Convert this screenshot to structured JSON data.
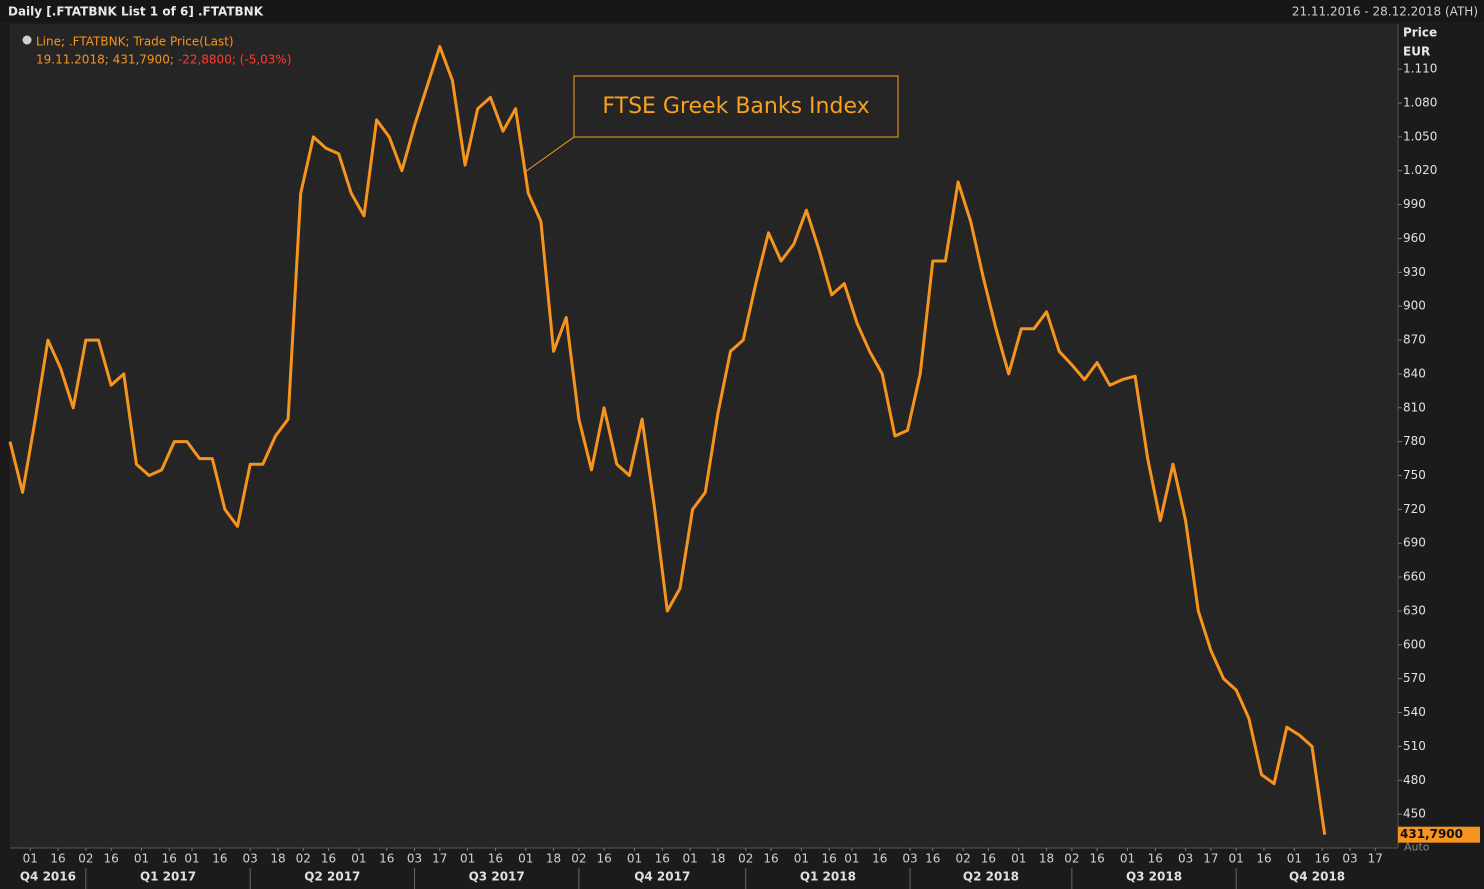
{
  "chart_data": {
    "type": "line",
    "header": "Daily [.FTATBNK List 1 of 6] .FTATBNK",
    "date_range": "21.11.2016 - 28.12.2018 (ATH)",
    "y_axis_label": "Price",
    "y_axis_unit": "EUR",
    "annotation": "FTSE Greek Banks Index",
    "legend_values": "19.11.2018; 431,7900;",
    "legend_change": "-22,8800; (-5,03%)",
    "last_price_label": "431,7900",
    "axis_mode": "Auto",
    "grid": true,
    "xlim": [
      "21.11.2016",
      "28.12.2018"
    ],
    "ylim": [
      420,
      1150
    ],
    "yticks": [
      450,
      480,
      510,
      540,
      570,
      600,
      630,
      660,
      690,
      720,
      750,
      780,
      810,
      840,
      870,
      900,
      930,
      960,
      990,
      {
        "value": 1020,
        "label": "1.020"
      },
      {
        "value": 1050,
        "label": "1.050"
      },
      {
        "value": 1080,
        "label": "1.080"
      },
      {
        "value": 1110,
        "label": "1.110"
      }
    ],
    "xticks": [
      {
        "value": "01.12.2016",
        "label": "01"
      },
      {
        "value": "16.12.2016",
        "label": "16"
      },
      {
        "value": "02.01.2017",
        "label": "02"
      },
      {
        "value": "16.01.2017",
        "label": "16"
      },
      {
        "value": "01.02.2017",
        "label": "01"
      },
      {
        "value": "16.02.2017",
        "label": "16"
      },
      {
        "value": "01.03.2017",
        "label": "01"
      },
      {
        "value": "16.03.2017",
        "label": "16"
      },
      {
        "value": "03.04.2017",
        "label": "03"
      },
      {
        "value": "18.04.2017",
        "label": "18"
      },
      {
        "value": "02.05.2017",
        "label": "02"
      },
      {
        "value": "16.05.2017",
        "label": "16"
      },
      {
        "value": "01.06.2017",
        "label": "01"
      },
      {
        "value": "16.06.2017",
        "label": "16"
      },
      {
        "value": "03.07.2017",
        "label": "03"
      },
      {
        "value": "17.07.2017",
        "label": "17"
      },
      {
        "value": "01.08.2017",
        "label": "01"
      },
      {
        "value": "16.08.2017",
        "label": "16"
      },
      {
        "value": "01.09.2017",
        "label": "01"
      },
      {
        "value": "18.09.2017",
        "label": "18"
      },
      {
        "value": "02.10.2017",
        "label": "02"
      },
      {
        "value": "16.10.2017",
        "label": "16"
      },
      {
        "value": "01.11.2017",
        "label": "01"
      },
      {
        "value": "16.11.2017",
        "label": "16"
      },
      {
        "value": "01.12.2017",
        "label": "01"
      },
      {
        "value": "18.12.2017",
        "label": "18"
      },
      {
        "value": "02.01.2018",
        "label": "02"
      },
      {
        "value": "16.01.2018",
        "label": "16"
      },
      {
        "value": "01.02.2018",
        "label": "01"
      },
      {
        "value": "16.02.2018",
        "label": "16"
      },
      {
        "value": "01.03.2018",
        "label": "01"
      },
      {
        "value": "16.03.2018",
        "label": "16"
      },
      {
        "value": "03.04.2018",
        "label": "03"
      },
      {
        "value": "16.04.2018",
        "label": "16"
      },
      {
        "value": "02.05.2018",
        "label": "02"
      },
      {
        "value": "16.05.2018",
        "label": "16"
      },
      {
        "value": "01.06.2018",
        "label": "01"
      },
      {
        "value": "18.06.2018",
        "label": "18"
      },
      {
        "value": "02.07.2018",
        "label": "02"
      },
      {
        "value": "16.07.2018",
        "label": "16"
      },
      {
        "value": "01.08.2018",
        "label": "01"
      },
      {
        "value": "16.08.2018",
        "label": "16"
      },
      {
        "value": "03.09.2018",
        "label": "03"
      },
      {
        "value": "17.09.2018",
        "label": "17"
      },
      {
        "value": "01.10.2018",
        "label": "01"
      },
      {
        "value": "16.10.2018",
        "label": "16"
      },
      {
        "value": "01.11.2018",
        "label": "01"
      },
      {
        "value": "16.11.2018",
        "label": "16"
      },
      {
        "value": "03.12.2018",
        "label": "03"
      },
      {
        "value": "17.12.2018",
        "label": "17"
      }
    ],
    "quarters": [
      {
        "label": "Q4 2016",
        "start": "21.11.2016"
      },
      {
        "label": "Q1 2017",
        "start": "02.01.2017"
      },
      {
        "label": "Q2 2017",
        "start": "03.04.2017"
      },
      {
        "label": "Q3 2017",
        "start": "03.07.2017"
      },
      {
        "label": "Q4 2017",
        "start": "02.10.2017"
      },
      {
        "label": "Q1 2018",
        "start": "02.01.2018"
      },
      {
        "label": "Q2 2018",
        "start": "03.04.2018"
      },
      {
        "label": "Q3 2018",
        "start": "02.07.2018"
      },
      {
        "label": "Q4 2018",
        "start": "01.10.2018"
      }
    ],
    "series": [
      {
        "name": "Line; .FTATBNK; Trade Price(Last)",
        "color": "#f7941d",
        "x": [
          "21.11.2016",
          "28.11.2016",
          "05.12.2016",
          "12.12.2016",
          "19.12.2016",
          "26.12.2016",
          "02.01.2017",
          "09.01.2017",
          "16.01.2017",
          "23.01.2017",
          "30.01.2017",
          "06.02.2017",
          "13.02.2017",
          "20.02.2017",
          "27.02.2017",
          "06.03.2017",
          "13.03.2017",
          "20.03.2017",
          "27.03.2017",
          "03.04.2017",
          "10.04.2017",
          "17.04.2017",
          "24.04.2017",
          "01.05.2017",
          "08.05.2017",
          "15.05.2017",
          "22.05.2017",
          "29.05.2017",
          "05.06.2017",
          "12.06.2017",
          "19.06.2017",
          "26.06.2017",
          "03.07.2017",
          "10.07.2017",
          "17.07.2017",
          "24.07.2017",
          "31.07.2017",
          "07.08.2017",
          "14.08.2017",
          "21.08.2017",
          "28.08.2017",
          "04.09.2017",
          "11.09.2017",
          "18.09.2017",
          "25.09.2017",
          "02.10.2017",
          "09.10.2017",
          "16.10.2017",
          "23.10.2017",
          "30.10.2017",
          "06.11.2017",
          "13.11.2017",
          "20.11.2017",
          "27.11.2017",
          "04.12.2017",
          "11.12.2017",
          "18.12.2017",
          "25.12.2017",
          "01.01.2018",
          "08.01.2018",
          "15.01.2018",
          "22.01.2018",
          "29.01.2018",
          "05.02.2018",
          "12.02.2018",
          "19.02.2018",
          "26.02.2018",
          "05.03.2018",
          "12.03.2018",
          "19.03.2018",
          "26.03.2018",
          "02.04.2018",
          "09.04.2018",
          "16.04.2018",
          "23.04.2018",
          "30.04.2018",
          "07.05.2018",
          "14.05.2018",
          "21.05.2018",
          "28.05.2018",
          "04.06.2018",
          "11.06.2018",
          "18.06.2018",
          "25.06.2018",
          "02.07.2018",
          "09.07.2018",
          "16.07.2018",
          "23.07.2018",
          "30.07.2018",
          "06.08.2018",
          "13.08.2018",
          "20.08.2018",
          "27.08.2018",
          "03.09.2018",
          "10.09.2018",
          "17.09.2018",
          "24.09.2018",
          "01.10.2018",
          "08.10.2018",
          "15.10.2018",
          "22.10.2018",
          "29.10.2018",
          "05.11.2018",
          "12.11.2018",
          "19.11.2018"
        ],
        "values": [
          780,
          735,
          800,
          870,
          845,
          810,
          870,
          870,
          830,
          840,
          760,
          750,
          755,
          780,
          780,
          765,
          765,
          720,
          705,
          760,
          760,
          785,
          800,
          1000,
          1050,
          1040,
          1035,
          1000,
          980,
          1065,
          1050,
          1020,
          1060,
          1095,
          1130,
          1100,
          1025,
          1075,
          1085,
          1055,
          1075,
          1000,
          975,
          860,
          890,
          800,
          755,
          810,
          760,
          750,
          800,
          720,
          630,
          650,
          720,
          735,
          805,
          860,
          870,
          920,
          965,
          940,
          955,
          985,
          950,
          910,
          920,
          885,
          860,
          840,
          785,
          790,
          840,
          940,
          940,
          1010,
          975,
          925,
          880,
          840,
          880,
          880,
          895,
          860,
          848,
          835,
          850,
          830,
          835,
          838,
          765,
          710,
          760,
          710,
          630,
          595,
          570,
          560,
          535,
          485,
          477,
          527,
          520,
          510,
          431.79
        ]
      }
    ]
  }
}
